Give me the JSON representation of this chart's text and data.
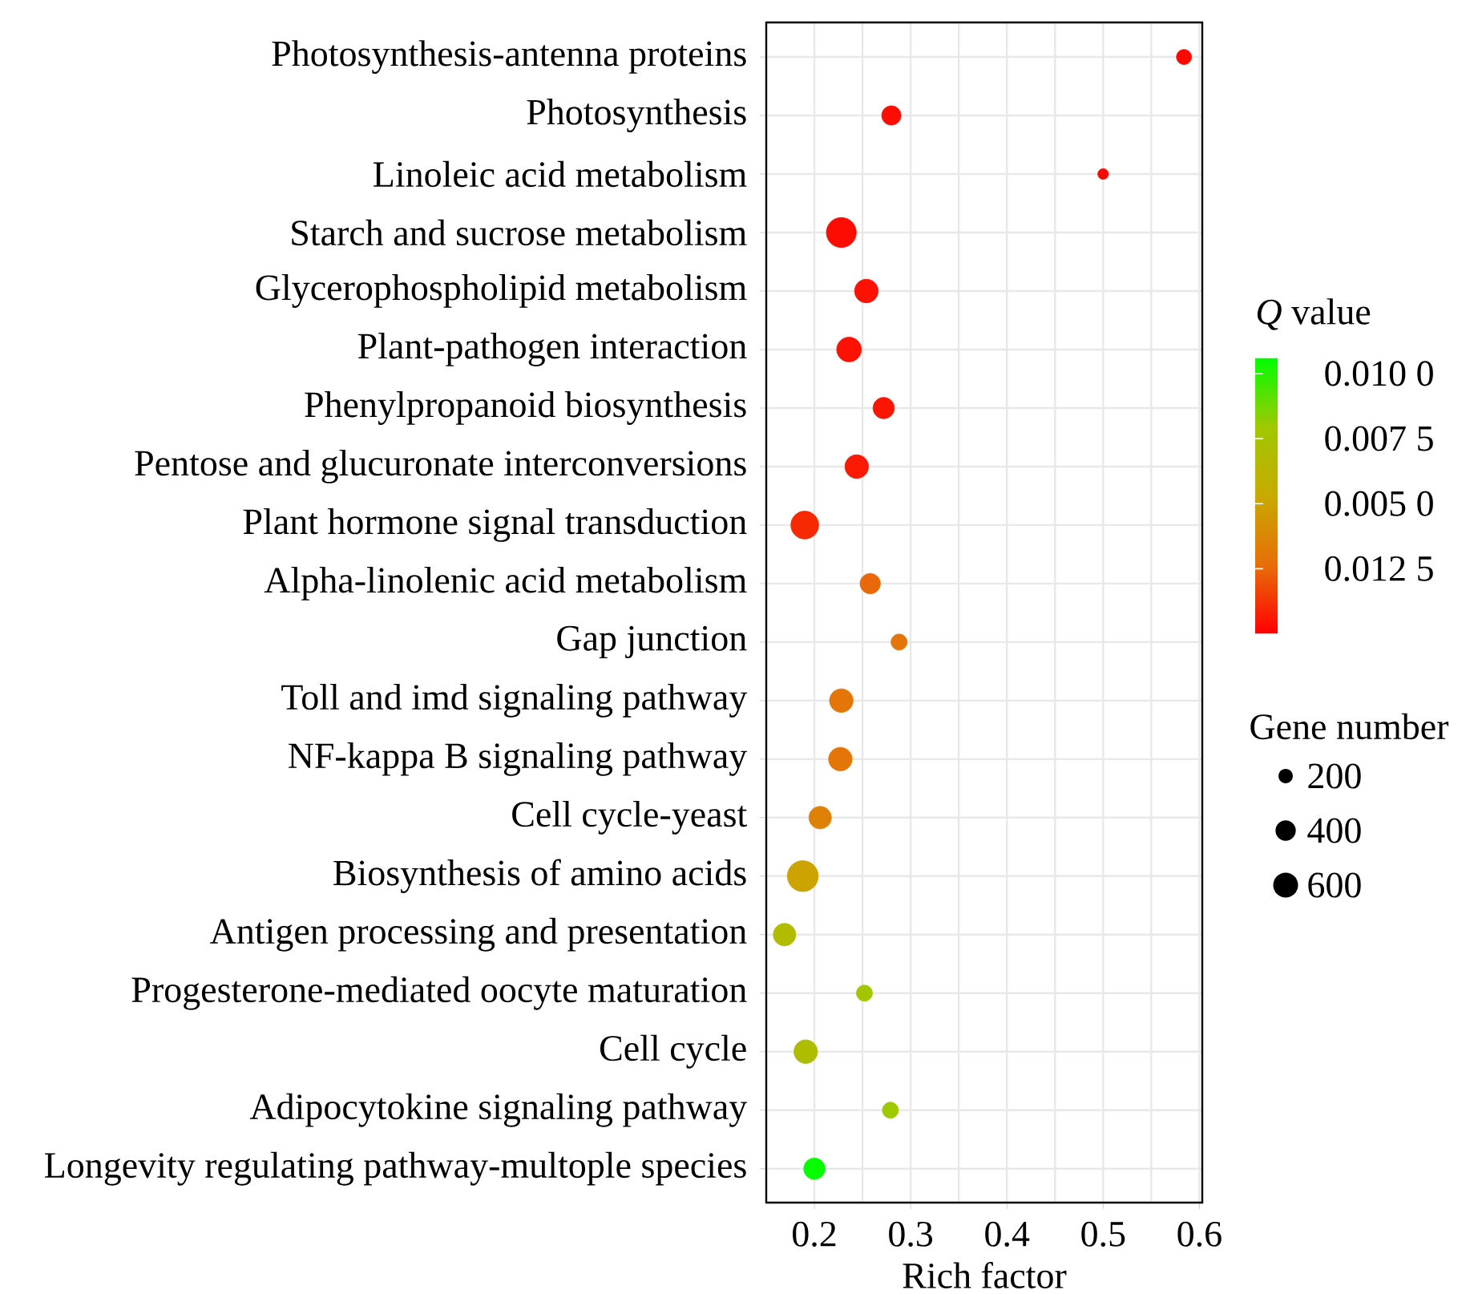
{
  "chart_data": {
    "type": "bubble",
    "orientation": "horizontal",
    "xlabel": "Rich factor",
    "clabel": "*Q* value",
    "legend_title": "Gene number",
    "grid": true,
    "categories": [
      "Photosynthesis-antenna proteins",
      "Photosynthesis",
      "Linoleic acid metabolism",
      "Starch and sucrose metabolism",
      "Glycerophospholipid metabolism",
      "Plant-pathogen interaction",
      "Phenylpropanoid biosynthesis",
      "Pentose and glucuronate interconversions",
      "Plant hormone signal transduction",
      "Alpha-linolenic acid metabolism",
      "Gap junction",
      "Toll and imd signaling pathway",
      "NF-kappa B signaling pathway",
      "Cell cycle-yeast",
      "Biosynthesis of amino acids",
      "Antigen processing and presentation",
      "Progesterone-mediated oocyte maturation",
      "Cell cycle",
      "Adipocytokine signaling pathway",
      "Longevity regulating pathway-multople species"
    ],
    "values": [
      0.584,
      0.28,
      0.5,
      0.228,
      0.254,
      0.236,
      0.272,
      0.244,
      0.19,
      0.258,
      0.288,
      0.228,
      0.227,
      0.206,
      0.188,
      0.169,
      0.252,
      0.191,
      0.279,
      0.2
    ],
    "sizes": [
      220,
      360,
      110,
      870,
      540,
      590,
      440,
      540,
      750,
      400,
      250,
      540,
      540,
      490,
      930,
      490,
      250,
      540,
      250,
      440
    ],
    "cvalues": [
      0.0002,
      0.0003,
      0.0002,
      0.0003,
      0.0004,
      0.0004,
      0.0005,
      0.0006,
      0.001,
      0.0025,
      0.003,
      0.003,
      0.003,
      0.0035,
      0.005,
      0.0068,
      0.0078,
      0.007,
      0.008,
      0.0105
    ],
    "xlim": [
      0.15,
      0.603
    ],
    "xticks": [
      0.2,
      0.3,
      0.4,
      0.5,
      0.6
    ],
    "clim": [
      0,
      0.0106
    ],
    "cticks": [
      {
        "value": 0.01,
        "label": "0.010 0"
      },
      {
        "value": 0.0075,
        "label": "0.007 5"
      },
      {
        "value": 0.005,
        "label": "0.005 0"
      },
      {
        "value": 0.0025,
        "label": "0.012 5"
      }
    ],
    "size_legend": [
      200,
      400,
      600
    ]
  }
}
